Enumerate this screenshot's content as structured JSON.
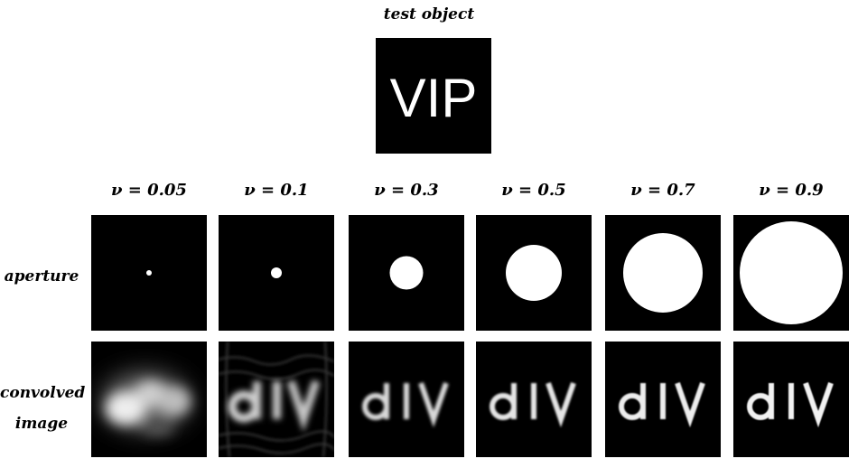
{
  "title": "test object",
  "test_object": {
    "text": "VIP"
  },
  "rows": {
    "aperture": "aperture",
    "convolved_line1": "convolved",
    "convolved_line2": "image"
  },
  "nu_values": [
    "ν = 0.05",
    "ν = 0.1",
    "ν = 0.3",
    "ν = 0.5",
    "ν = 0.7",
    "ν = 0.9"
  ],
  "aperture_levels": [
    0.05,
    0.1,
    0.3,
    0.5,
    0.7,
    0.9
  ],
  "colors": {
    "background": "#ffffff",
    "panel": "#000000",
    "foreground": "#ffffff"
  }
}
